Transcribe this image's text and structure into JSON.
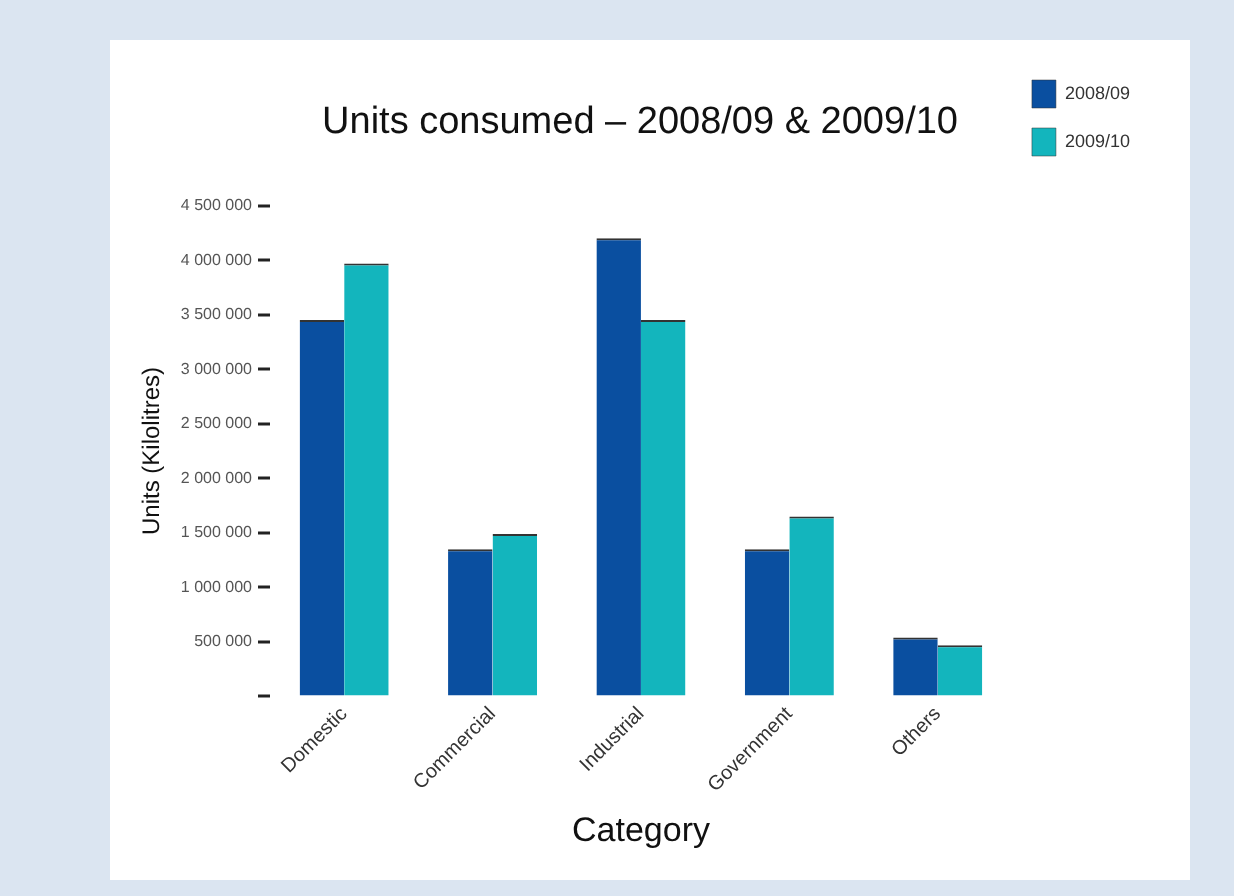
{
  "chart_data": {
    "type": "bar",
    "title": "Units consumed – 2008/09 & 2009/10",
    "xlabel": "Category",
    "ylabel": "Units (Kilolitres)",
    "categories": [
      "Domestic",
      "Commercial",
      "Industrial",
      "Government",
      "Others"
    ],
    "series": [
      {
        "name": "2008/09",
        "color": "#0a4fa0",
        "values": [
          3450000,
          1350000,
          4200000,
          1350000,
          540000
        ]
      },
      {
        "name": "2009/10",
        "color": "#13b5bd",
        "values": [
          3970000,
          1490000,
          3450000,
          1650000,
          470000
        ]
      }
    ],
    "ylim": [
      0,
      4500000
    ],
    "yticks": [
      {
        "value": 0,
        "label": null
      },
      {
        "value": 500000,
        "label": "500 000"
      },
      {
        "value": 1000000,
        "label": "1 000 000"
      },
      {
        "value": 1500000,
        "label": "1 500 000"
      },
      {
        "value": 2000000,
        "label": "2 000 000"
      },
      {
        "value": 2500000,
        "label": "2 500 000"
      },
      {
        "value": 3000000,
        "label": "3 000 000"
      },
      {
        "value": 3500000,
        "label": "3 500 000"
      },
      {
        "value": 4000000,
        "label": "4 000 000"
      },
      {
        "value": 4500000,
        "label": "4 500 000"
      }
    ],
    "grid": false,
    "legend": "top right"
  }
}
